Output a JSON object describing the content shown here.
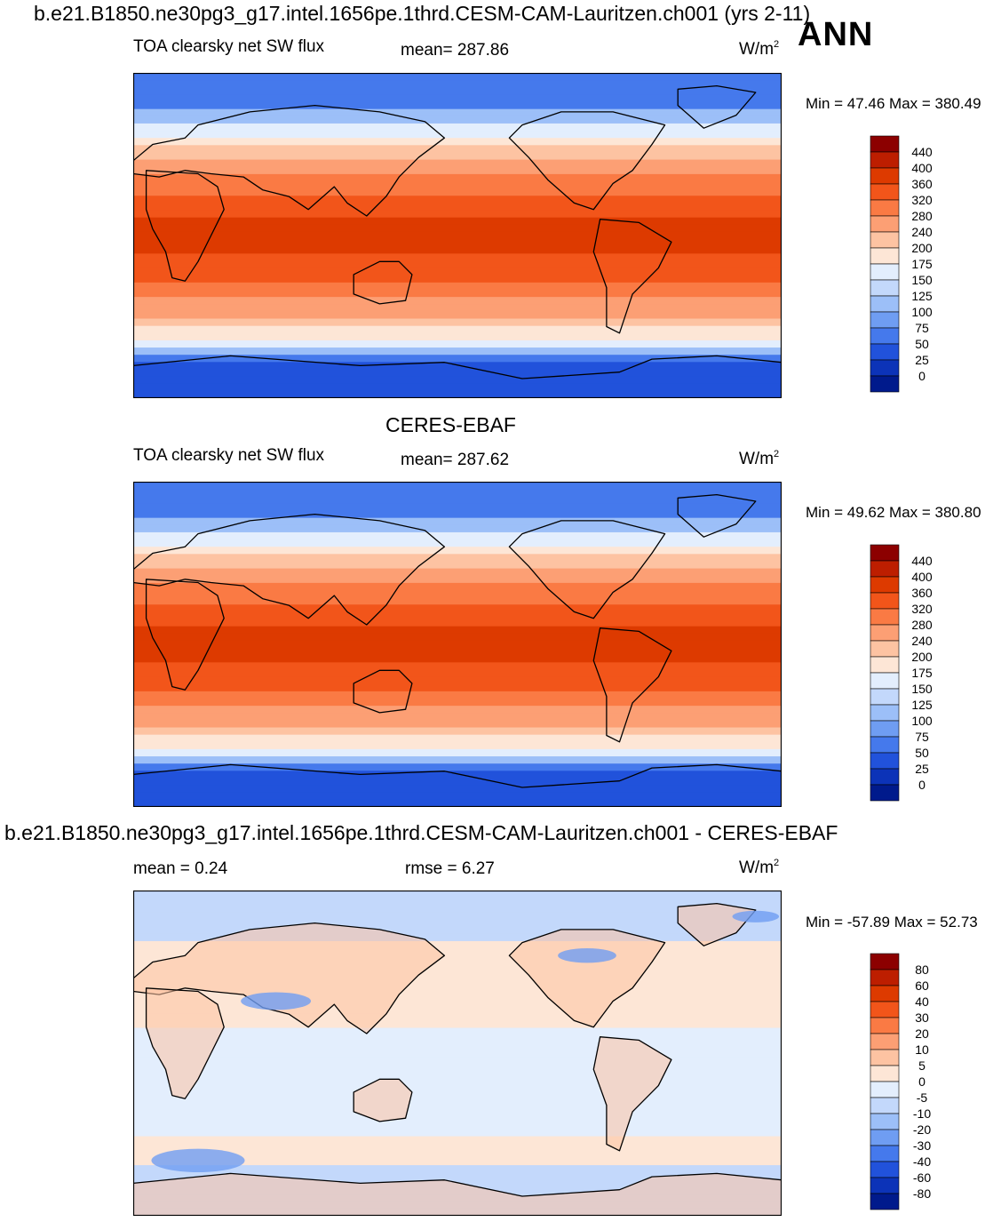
{
  "header": {
    "case_title": "b.e21.B1850.ne30pg3_g17.intel.1656pe.1thrd.CESM-CAM-Lauritzen.ch001 (yrs 2-11)",
    "season": "ANN"
  },
  "chart_data": [
    {
      "type": "heatmap",
      "panel": "model",
      "variable": "TOA clearsky net SW flux",
      "mean_label": "mean= 287.86",
      "units": "W/m",
      "units_sup": "2",
      "minmax_label": "Min =  47.46 Max = 380.49",
      "levels": [
        "440",
        "400",
        "360",
        "320",
        "280",
        "240",
        "200",
        "175",
        "150",
        "125",
        "100",
        "75",
        "50",
        "25",
        "0"
      ],
      "colors": [
        "#8c0000",
        "#bd1e00",
        "#dd3a00",
        "#f2551a",
        "#fa7a44",
        "#fc9f74",
        "#fdc3a2",
        "#fde6d6",
        "#e3eefd",
        "#c3d8fb",
        "#9cbff8",
        "#6f9df2",
        "#4579ec",
        "#2152db",
        "#0c33b8",
        "#001a8c"
      ]
    },
    {
      "type": "heatmap",
      "panel": "obs",
      "title": "CERES-EBAF",
      "variable": "TOA clearsky net SW flux",
      "mean_label": "mean= 287.62",
      "units": "W/m",
      "units_sup": "2",
      "minmax_label": "Min =  49.62 Max = 380.80",
      "levels": [
        "440",
        "400",
        "360",
        "320",
        "280",
        "240",
        "200",
        "175",
        "150",
        "125",
        "100",
        "75",
        "50",
        "25",
        "0"
      ],
      "colors": [
        "#8c0000",
        "#bd1e00",
        "#dd3a00",
        "#f2551a",
        "#fa7a44",
        "#fc9f74",
        "#fdc3a2",
        "#fde6d6",
        "#e3eefd",
        "#c3d8fb",
        "#9cbff8",
        "#6f9df2",
        "#4579ec",
        "#2152db",
        "#0c33b8",
        "#001a8c"
      ]
    },
    {
      "type": "heatmap",
      "panel": "diff",
      "title": "b.e21.B1850.ne30pg3_g17.intel.1656pe.1thrd.CESM-CAM-Lauritzen.ch001 - CERES-EBAF",
      "mean_label": "mean =   0.24",
      "rmse_label": "rmse =   6.27",
      "units": "W/m",
      "units_sup": "2",
      "minmax_label": "Min = -57.89 Max =  52.73",
      "levels": [
        "80",
        "60",
        "40",
        "30",
        "20",
        "10",
        "5",
        "0",
        "-5",
        "-10",
        "-20",
        "-30",
        "-40",
        "-60",
        "-80"
      ],
      "colors": [
        "#8c0000",
        "#bd1e00",
        "#dd3a00",
        "#f2551a",
        "#fa7a44",
        "#fc9f74",
        "#fdc3a2",
        "#fde6d6",
        "#e3eefd",
        "#c3d8fb",
        "#9cbff8",
        "#6f9df2",
        "#4579ec",
        "#2152db",
        "#0c33b8",
        "#001a8c"
      ]
    }
  ]
}
